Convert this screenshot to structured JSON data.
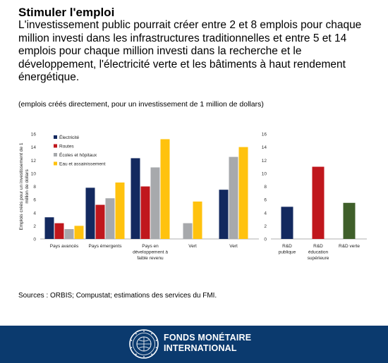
{
  "header": {
    "title": "Stimuler l'emploi",
    "subtitle": "L'investissement public pourrait créer entre 2 et 8 emplois pour chaque million investi dans les infrastructures traditionnelles et entre 5 et 14 emplois pour chaque million investi dans la recherche et le développement, l'électricité verte et les bâtiments à haut rendement énergétique.",
    "note": "(emplois créés directement, pour un investissement de 1 million de dollars)"
  },
  "footer": {
    "sources": "Sources : ORBIS; Compustat; estimations des services du FMI.",
    "org_line1": "FONDS MONÉTAIRE",
    "org_line2": "INTERNATIONAL"
  },
  "chart_data": [
    {
      "type": "bar",
      "ylabel": "Emplois créés pour un investissement de 1 million de dollars",
      "ylim": [
        0,
        16
      ],
      "yticks": [
        0,
        2,
        4,
        6,
        8,
        10,
        12,
        14,
        16
      ],
      "legend_position": "top-left",
      "categories": [
        "Pays avancés",
        "Pays émergents",
        "Pays en développement à faible revenu",
        "Vert",
        "Vert"
      ],
      "series": [
        {
          "name": "Électricité",
          "color": "#13295f",
          "values": [
            3.3,
            7.8,
            12.3,
            null,
            7.5
          ]
        },
        {
          "name": "Routes",
          "color": "#c0171d",
          "values": [
            2.4,
            5.2,
            8.0,
            null,
            null
          ]
        },
        {
          "name": "Écoles et hôpitaux",
          "color": "#a7a9ac",
          "values": [
            1.5,
            6.2,
            10.9,
            2.4,
            12.5
          ]
        },
        {
          "name": "Eau et assainissement",
          "color": "#ffc20e",
          "values": [
            2.0,
            8.6,
            15.2,
            5.7,
            14.0
          ]
        }
      ]
    },
    {
      "type": "bar",
      "ylim": [
        0,
        16
      ],
      "yticks": [
        0,
        2,
        4,
        6,
        8,
        10,
        12,
        14,
        16
      ],
      "categories": [
        "R&D publique",
        "R&D éducation supérieure",
        "R&D verte"
      ],
      "values": [
        4.9,
        11.0,
        5.5
      ],
      "colors": [
        "#13295f",
        "#c0171d",
        "#3f5f2a"
      ]
    }
  ]
}
